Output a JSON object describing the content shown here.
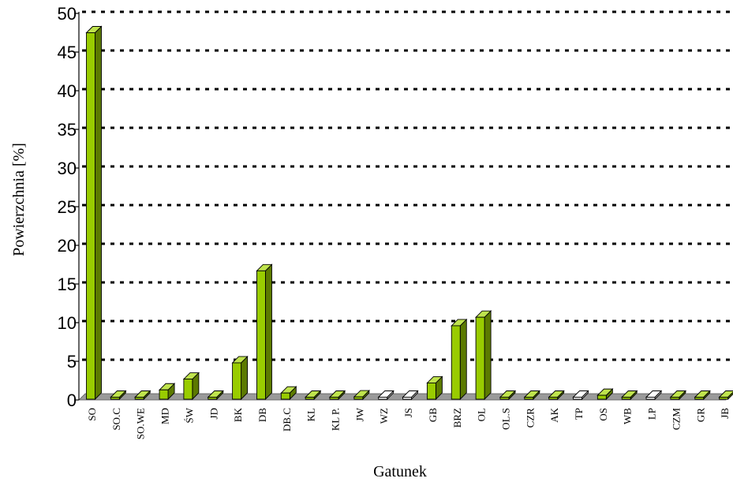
{
  "chart_data": {
    "type": "bar",
    "title": "",
    "xlabel": "Gatunek",
    "ylabel": "Powierzchnia [%]",
    "ylim": [
      0,
      50
    ],
    "yticks": [
      0,
      5,
      10,
      15,
      20,
      25,
      30,
      35,
      40,
      45,
      50
    ],
    "grid": true,
    "categories": [
      "SO",
      "SO.C",
      "SO.WE",
      "MD",
      "ŚW",
      "JD",
      "BK",
      "DB",
      "DB.C",
      "KL",
      "KL P.",
      "JW",
      "WZ",
      "JS",
      "GB",
      "BRZ",
      "OL",
      "OL.S",
      "CZR",
      "AK",
      "TP",
      "OS",
      "WB",
      "LP",
      "CZM",
      "GR",
      "JB"
    ],
    "values": [
      47.5,
      0.1,
      0.05,
      1.3,
      2.7,
      0.05,
      4.8,
      16.7,
      0.9,
      0.05,
      0.05,
      0.4,
      0.3,
      0.2,
      2.2,
      9.6,
      10.7,
      0.05,
      0.05,
      0.05,
      0.3,
      0.6,
      0.05,
      0.2,
      0.05,
      0.05,
      0.05
    ],
    "colors": {
      "bar_front": "#99cc00",
      "bar_side": "#5c7a00",
      "bar_top": "#bfe34d",
      "bar_edge": "#000000",
      "floor": "#9a9a9a",
      "grid": "#000000"
    }
  }
}
